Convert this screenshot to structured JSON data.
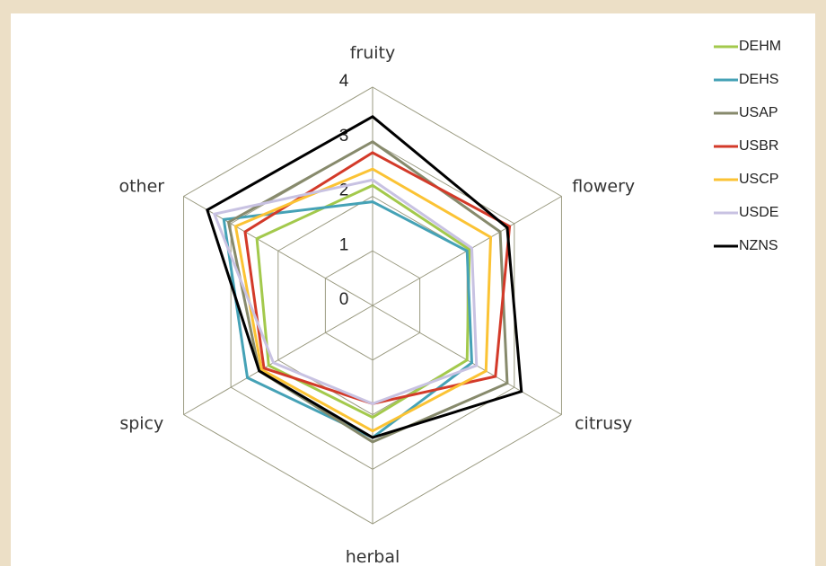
{
  "chart_data": {
    "type": "radar",
    "categories": [
      "fruity",
      "flowery",
      "citrusy",
      "herbal",
      "spicy",
      "other"
    ],
    "ylim": [
      0,
      4
    ],
    "yticks": [
      0,
      1,
      2,
      3,
      4
    ],
    "grid": true,
    "legend": "top-right",
    "series": [
      {
        "name": "DEHM",
        "color": "#a3c94c",
        "values": [
          2.2,
          2.05,
          2.0,
          2.05,
          2.2,
          2.45
        ]
      },
      {
        "name": "DEHS",
        "color": "#45a2b6",
        "values": [
          1.9,
          2.0,
          2.1,
          2.42,
          2.65,
          3.15
        ]
      },
      {
        "name": "USAP",
        "color": "#878a6c",
        "values": [
          3.0,
          2.7,
          2.85,
          2.5,
          2.4,
          3.05
        ]
      },
      {
        "name": "USBR",
        "color": "#d33a29",
        "values": [
          2.8,
          2.9,
          2.6,
          1.8,
          2.3,
          2.7
        ]
      },
      {
        "name": "USCP",
        "color": "#fbc334",
        "values": [
          2.5,
          2.5,
          2.4,
          2.3,
          2.35,
          2.9
        ]
      },
      {
        "name": "USDE",
        "color": "#c8c2e2",
        "values": [
          2.3,
          2.1,
          2.2,
          1.8,
          2.1,
          3.35
        ]
      },
      {
        "name": "NZNS",
        "color": "#000000",
        "values": [
          3.46,
          2.85,
          3.15,
          2.42,
          2.4,
          3.5
        ]
      }
    ]
  }
}
